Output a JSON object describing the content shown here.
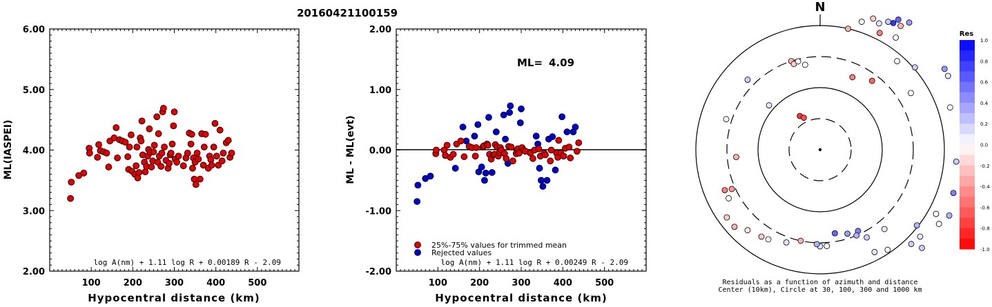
{
  "event_title": "20160421100159",
  "chart_data": [
    {
      "type": "scatter",
      "xlabel": "Hypocentral distance (km)",
      "ylabel": "ML(IASPEI)",
      "xlim": [
        0,
        600
      ],
      "ylim": [
        2.0,
        6.0
      ],
      "xticks": [
        "100",
        "200",
        "300",
        "400",
        "500"
      ],
      "yticks": [
        "2.00",
        "3.00",
        "4.00",
        "5.00",
        "6.00"
      ],
      "formula": "log A(nm) + 1.11 log R + 0.00189 R - 2.09",
      "color": "#dd0000",
      "points": [
        [
          50,
          3.2
        ],
        [
          52,
          3.47
        ],
        [
          70,
          3.58
        ],
        [
          82,
          3.62
        ],
        [
          95,
          4.03
        ],
        [
          96,
          3.95
        ],
        [
          115,
          3.88
        ],
        [
          118,
          4.09
        ],
        [
          122,
          3.99
        ],
        [
          130,
          3.97
        ],
        [
          137,
          3.95
        ],
        [
          142,
          3.72
        ],
        [
          145,
          4.15
        ],
        [
          155,
          4.2
        ],
        [
          160,
          4.37
        ],
        [
          163,
          3.87
        ],
        [
          168,
          4.17
        ],
        [
          175,
          4.15
        ],
        [
          182,
          4.13
        ],
        [
          188,
          3.89
        ],
        [
          190,
          3.68
        ],
        [
          192,
          4.05
        ],
        [
          196,
          4.25
        ],
        [
          198,
          3.65
        ],
        [
          205,
          3.6
        ],
        [
          208,
          3.74
        ],
        [
          210,
          4.05
        ],
        [
          212,
          3.54
        ],
        [
          215,
          3.63
        ],
        [
          218,
          4.2
        ],
        [
          220,
          4.15
        ],
        [
          222,
          4.48
        ],
        [
          224,
          3.92
        ],
        [
          228,
          3.8
        ],
        [
          230,
          3.64
        ],
        [
          233,
          3.73
        ],
        [
          236,
          3.9
        ],
        [
          238,
          4.01
        ],
        [
          240,
          4.35
        ],
        [
          242,
          3.96
        ],
        [
          245,
          3.72
        ],
        [
          248,
          3.82
        ],
        [
          250,
          3.97
        ],
        [
          252,
          4.08
        ],
        [
          258,
          4.55
        ],
        [
          260,
          3.8
        ],
        [
          262,
          4.27
        ],
        [
          264,
          3.9
        ],
        [
          268,
          3.73
        ],
        [
          270,
          3.95
        ],
        [
          272,
          4.63
        ],
        [
          274,
          4.69
        ],
        [
          276,
          4.05
        ],
        [
          280,
          3.83
        ],
        [
          285,
          3.7
        ],
        [
          288,
          3.78
        ],
        [
          290,
          3.92
        ],
        [
          292,
          3.95
        ],
        [
          295,
          4.1
        ],
        [
          298,
          4.4
        ],
        [
          300,
          4.63
        ],
        [
          302,
          3.85
        ],
        [
          306,
          3.8
        ],
        [
          310,
          3.9
        ],
        [
          322,
          3.74
        ],
        [
          328,
          3.87
        ],
        [
          332,
          3.95
        ],
        [
          336,
          4.28
        ],
        [
          340,
          4.1
        ],
        [
          342,
          4.26
        ],
        [
          344,
          3.7
        ],
        [
          346,
          3.87
        ],
        [
          348,
          3.52
        ],
        [
          350,
          3.8
        ],
        [
          352,
          3.43
        ],
        [
          355,
          3.95
        ],
        [
          358,
          3.85
        ],
        [
          362,
          3.52
        ],
        [
          366,
          4.27
        ],
        [
          370,
          3.75
        ],
        [
          372,
          4.05
        ],
        [
          375,
          4.26
        ],
        [
          382,
          3.7
        ],
        [
          385,
          3.9
        ],
        [
          388,
          3.84
        ],
        [
          390,
          3.75
        ],
        [
          395,
          4.05
        ],
        [
          398,
          4.44
        ],
        [
          402,
          3.9
        ],
        [
          406,
          3.75
        ],
        [
          410,
          4.33
        ],
        [
          415,
          3.82
        ],
        [
          418,
          3.95
        ],
        [
          425,
          4.12
        ],
        [
          430,
          4.16
        ],
        [
          434,
          3.88
        ],
        [
          438,
          3.95
        ]
      ]
    },
    {
      "type": "scatter",
      "xlabel": "Hypocentral distance (km)",
      "ylabel": "ML - ML(evt)",
      "xlim": [
        0,
        600
      ],
      "ylim": [
        -2.0,
        2.0
      ],
      "xticks": [
        "100",
        "200",
        "300",
        "400",
        "500"
      ],
      "yticks": [
        "-2.00",
        "-1.00",
        "0.00",
        "1.00",
        "2.00"
      ],
      "ml_label": "ML=",
      "ml_value": "4.09",
      "formula": "log A(nm) + 1.11 log R + 0.00249 R - 2.09",
      "legend": [
        {
          "label": "25%-75% values for trimmed mean",
          "color": "#dd0000"
        },
        {
          "label": "Rejected values",
          "color": "#0000cc"
        }
      ],
      "trimmed_points": [
        [
          95,
          -0.06
        ],
        [
          96,
          0.0
        ],
        [
          115,
          0.0
        ],
        [
          118,
          -0.09
        ],
        [
          122,
          0.08
        ],
        [
          130,
          -0.12
        ],
        [
          137,
          -0.07
        ],
        [
          145,
          0.1
        ],
        [
          155,
          0.15
        ],
        [
          163,
          -0.11
        ],
        [
          175,
          0.06
        ],
        [
          182,
          0.04
        ],
        [
          190,
          -0.1
        ],
        [
          192,
          0.04
        ],
        [
          208,
          0.05
        ],
        [
          210,
          0.07
        ],
        [
          218,
          0.1
        ],
        [
          220,
          0.08
        ],
        [
          224,
          -0.07
        ],
        [
          228,
          -0.15
        ],
        [
          233,
          -0.08
        ],
        [
          236,
          -0.07
        ],
        [
          238,
          0.09
        ],
        [
          242,
          0.05
        ],
        [
          245,
          -0.1
        ],
        [
          248,
          -0.04
        ],
        [
          250,
          0.04
        ],
        [
          252,
          0.0
        ],
        [
          260,
          -0.06
        ],
        [
          264,
          -0.14
        ],
        [
          270,
          0.06
        ],
        [
          276,
          0.05
        ],
        [
          280,
          -0.18
        ],
        [
          288,
          -0.06
        ],
        [
          290,
          -0.01
        ],
        [
          292,
          0.02
        ],
        [
          295,
          -0.05
        ],
        [
          302,
          0.04
        ],
        [
          306,
          0.0
        ],
        [
          310,
          -0.02
        ],
        [
          322,
          -0.05
        ],
        [
          328,
          -0.14
        ],
        [
          332,
          0.0
        ],
        [
          342,
          0.02
        ],
        [
          346,
          -0.1
        ],
        [
          355,
          -0.05
        ],
        [
          358,
          -0.08
        ],
        [
          370,
          -0.18
        ],
        [
          372,
          0.0
        ],
        [
          385,
          -0.05
        ],
        [
          388,
          -0.12
        ],
        [
          390,
          0.16
        ],
        [
          395,
          -0.05
        ],
        [
          402,
          -0.1
        ],
        [
          406,
          0.03
        ],
        [
          415,
          0.05
        ],
        [
          418,
          -0.13
        ],
        [
          434,
          -0.02
        ],
        [
          438,
          0.12
        ]
      ],
      "rejected_points": [
        [
          50,
          -0.85
        ],
        [
          52,
          -0.58
        ],
        [
          70,
          -0.47
        ],
        [
          82,
          -0.43
        ],
        [
          142,
          -0.3
        ],
        [
          160,
          0.38
        ],
        [
          168,
          0.15
        ],
        [
          188,
          0.23
        ],
        [
          196,
          0.42
        ],
        [
          198,
          -0.36
        ],
        [
          205,
          -0.28
        ],
        [
          212,
          -0.5
        ],
        [
          215,
          -0.38
        ],
        [
          222,
          0.54
        ],
        [
          230,
          -0.37
        ],
        [
          240,
          0.3
        ],
        [
          258,
          0.58
        ],
        [
          262,
          0.18
        ],
        [
          268,
          -0.22
        ],
        [
          272,
          0.62
        ],
        [
          274,
          0.73
        ],
        [
          298,
          0.45
        ],
        [
          300,
          0.68
        ],
        [
          336,
          0.23
        ],
        [
          340,
          0.1
        ],
        [
          344,
          -0.3
        ],
        [
          348,
          -0.5
        ],
        [
          352,
          -0.6
        ],
        [
          362,
          -0.5
        ],
        [
          366,
          0.18
        ],
        [
          375,
          0.22
        ],
        [
          382,
          -0.33
        ],
        [
          398,
          0.55
        ],
        [
          410,
          0.3
        ],
        [
          425,
          0.3
        ],
        [
          430,
          0.38
        ]
      ]
    },
    {
      "type": "polar-scatter",
      "north_label": "N",
      "caption_line1": "Residuals as a function of azimuth and distance",
      "caption_line2": "Center (10km), Circle at 30, 100, 300 and 1000 km",
      "colorbar_title": "Res",
      "colorbar_ticks": [
        "1.0",
        "0.8",
        "0.6",
        "0.4",
        "0.2",
        "0.0",
        "-0.2",
        "-0.4",
        "-0.6",
        "-0.8",
        "-1.0"
      ],
      "colorbar_range": [
        -1.0,
        1.0
      ],
      "color_positive": "#0000ff",
      "color_negative": "#ff0000",
      "stations": [
        {
          "az": 13,
          "dist": 180,
          "res": -0.3
        },
        {
          "az": 18,
          "dist": 195,
          "res": 0.0
        },
        {
          "az": 22,
          "dist": 205,
          "res": -0.2
        },
        {
          "az": 25,
          "dist": 202,
          "res": 0.1
        },
        {
          "az": 28,
          "dist": 210,
          "res": 0.2
        },
        {
          "az": 30,
          "dist": 212,
          "res": 0.8
        },
        {
          "az": 31,
          "dist": 220,
          "res": 0.6
        },
        {
          "az": 33,
          "dist": 214,
          "res": -0.3
        },
        {
          "az": 35,
          "dist": 225,
          "res": 0.4
        },
        {
          "az": 34,
          "dist": 196,
          "res": 0.0
        },
        {
          "az": 27,
          "dist": 190,
          "res": -0.5
        },
        {
          "az": 24,
          "dist": 115,
          "res": -0.5
        },
        {
          "az": 37,
          "dist": 125,
          "res": -0.6
        },
        {
          "az": 41,
          "dist": 170,
          "res": 0.0
        },
        {
          "az": 49,
          "dist": 182,
          "res": 0.2
        },
        {
          "az": 57,
          "dist": 215,
          "res": 0.4
        },
        {
          "az": 60,
          "dist": 214,
          "res": 0.1
        },
        {
          "az": 58,
          "dist": 155,
          "res": 0.0
        },
        {
          "az": 72,
          "dist": 198,
          "res": 0.0
        },
        {
          "az": 76,
          "dist": 220,
          "res": 0.2
        },
        {
          "az": 95,
          "dist": 198,
          "res": 0.2
        },
        {
          "az": 107,
          "dist": 220,
          "res": -0.4
        },
        {
          "az": 108,
          "dist": 203,
          "res": 0.5
        },
        {
          "az": 110,
          "dist": 223,
          "res": 0.3
        },
        {
          "az": 117,
          "dist": 210,
          "res": 0.3
        },
        {
          "az": 119,
          "dist": 192,
          "res": 0.0
        },
        {
          "az": 122,
          "dist": 203,
          "res": 0.0
        },
        {
          "az": 128,
          "dist": 178,
          "res": 0.3
        },
        {
          "az": 131,
          "dist": 192,
          "res": 0.1
        },
        {
          "az": 134,
          "dist": 205,
          "res": 0.2
        },
        {
          "az": 136,
          "dist": 190,
          "res": 0.2
        },
        {
          "az": 141,
          "dist": 148,
          "res": 0.1
        },
        {
          "az": 146,
          "dist": 175,
          "res": 0.0
        },
        {
          "az": 152,
          "dist": 168,
          "res": 0.1
        },
        {
          "az": 152,
          "dist": 144,
          "res": 0.2
        },
        {
          "az": 155,
          "dist": 130,
          "res": 0.5
        },
        {
          "az": 157,
          "dist": 135,
          "res": 0.3
        },
        {
          "az": 162,
          "dist": 128,
          "res": 0.4
        },
        {
          "az": 170,
          "dist": 123,
          "res": 0.6
        },
        {
          "az": 176,
          "dist": 140,
          "res": 0.0
        },
        {
          "az": 180,
          "dist": 140,
          "res": 0.1
        },
        {
          "az": 182,
          "dist": 137,
          "res": 0.3
        },
        {
          "az": 192,
          "dist": 135,
          "res": -0.3
        },
        {
          "az": 200,
          "dist": 143,
          "res": 0.1
        },
        {
          "az": 210,
          "dist": 150,
          "res": 0.0
        },
        {
          "az": 214,
          "dist": 152,
          "res": -0.2
        },
        {
          "az": 222,
          "dist": 157,
          "res": -0.1
        },
        {
          "az": 228,
          "dist": 167,
          "res": -0.3
        },
        {
          "az": 234,
          "dist": 167,
          "res": -0.2
        },
        {
          "az": 242,
          "dist": 150,
          "res": 0.0
        },
        {
          "az": 247,
          "dist": 150,
          "res": -0.5
        },
        {
          "az": 246,
          "dist": 140,
          "res": -0.4
        },
        {
          "az": 265,
          "dist": 122,
          "res": -0.3
        },
        {
          "az": 288,
          "dist": 143,
          "res": 0.0
        },
        {
          "az": 311,
          "dist": 98,
          "res": 0.1
        },
        {
          "az": 314,
          "dist": 146,
          "res": 0.2
        },
        {
          "az": 329,
          "dist": 57,
          "res": -0.8
        },
        {
          "az": 333,
          "dist": 52,
          "res": -0.7
        },
        {
          "az": 342,
          "dist": 135,
          "res": -0.3
        },
        {
          "az": 343,
          "dist": 130,
          "res": -0.2
        },
        {
          "az": 346,
          "dist": 132,
          "res": 0.0
        },
        {
          "az": 350,
          "dist": 125,
          "res": 0.0
        }
      ]
    }
  ]
}
